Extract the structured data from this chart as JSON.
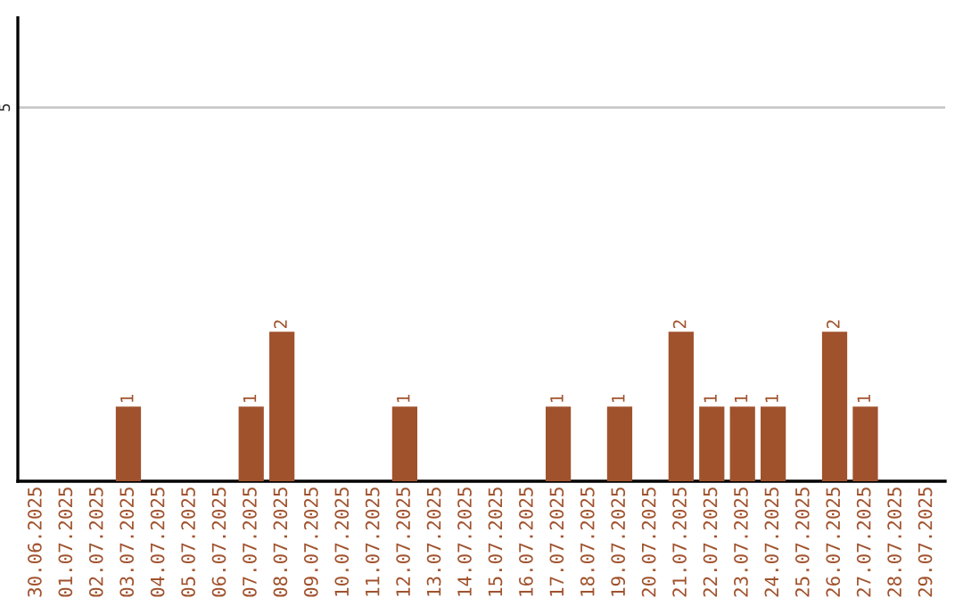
{
  "chart_data": {
    "type": "bar",
    "categories": [
      "30.06.2025",
      "01.07.2025",
      "02.07.2025",
      "03.07.2025",
      "04.07.2025",
      "05.07.2025",
      "06.07.2025",
      "07.07.2025",
      "08.07.2025",
      "09.07.2025",
      "10.07.2025",
      "11.07.2025",
      "12.07.2025",
      "13.07.2025",
      "14.07.2025",
      "15.07.2025",
      "16.07.2025",
      "17.07.2025",
      "18.07.2025",
      "19.07.2025",
      "20.07.2025",
      "21.07.2025",
      "22.07.2025",
      "23.07.2025",
      "24.07.2025",
      "25.07.2025",
      "26.07.2025",
      "27.07.2025",
      "28.07.2025",
      "29.07.2025"
    ],
    "values": [
      0,
      0,
      0,
      1,
      0,
      0,
      0,
      1,
      2,
      0,
      0,
      0,
      1,
      0,
      0,
      0,
      0,
      1,
      0,
      1,
      0,
      2,
      1,
      1,
      1,
      0,
      2,
      1,
      0,
      0
    ],
    "value_labels": [
      null,
      null,
      null,
      "1",
      null,
      null,
      null,
      "1",
      "2",
      null,
      null,
      null,
      "1",
      null,
      null,
      null,
      null,
      "1",
      null,
      "1",
      null,
      "2",
      "1",
      "1",
      "1",
      null,
      "2",
      "1",
      null,
      null
    ],
    "color": "#a0522d",
    "ylim": [
      0,
      6.2
    ],
    "yticks": [
      5
    ],
    "grid": "y",
    "legend": false
  }
}
